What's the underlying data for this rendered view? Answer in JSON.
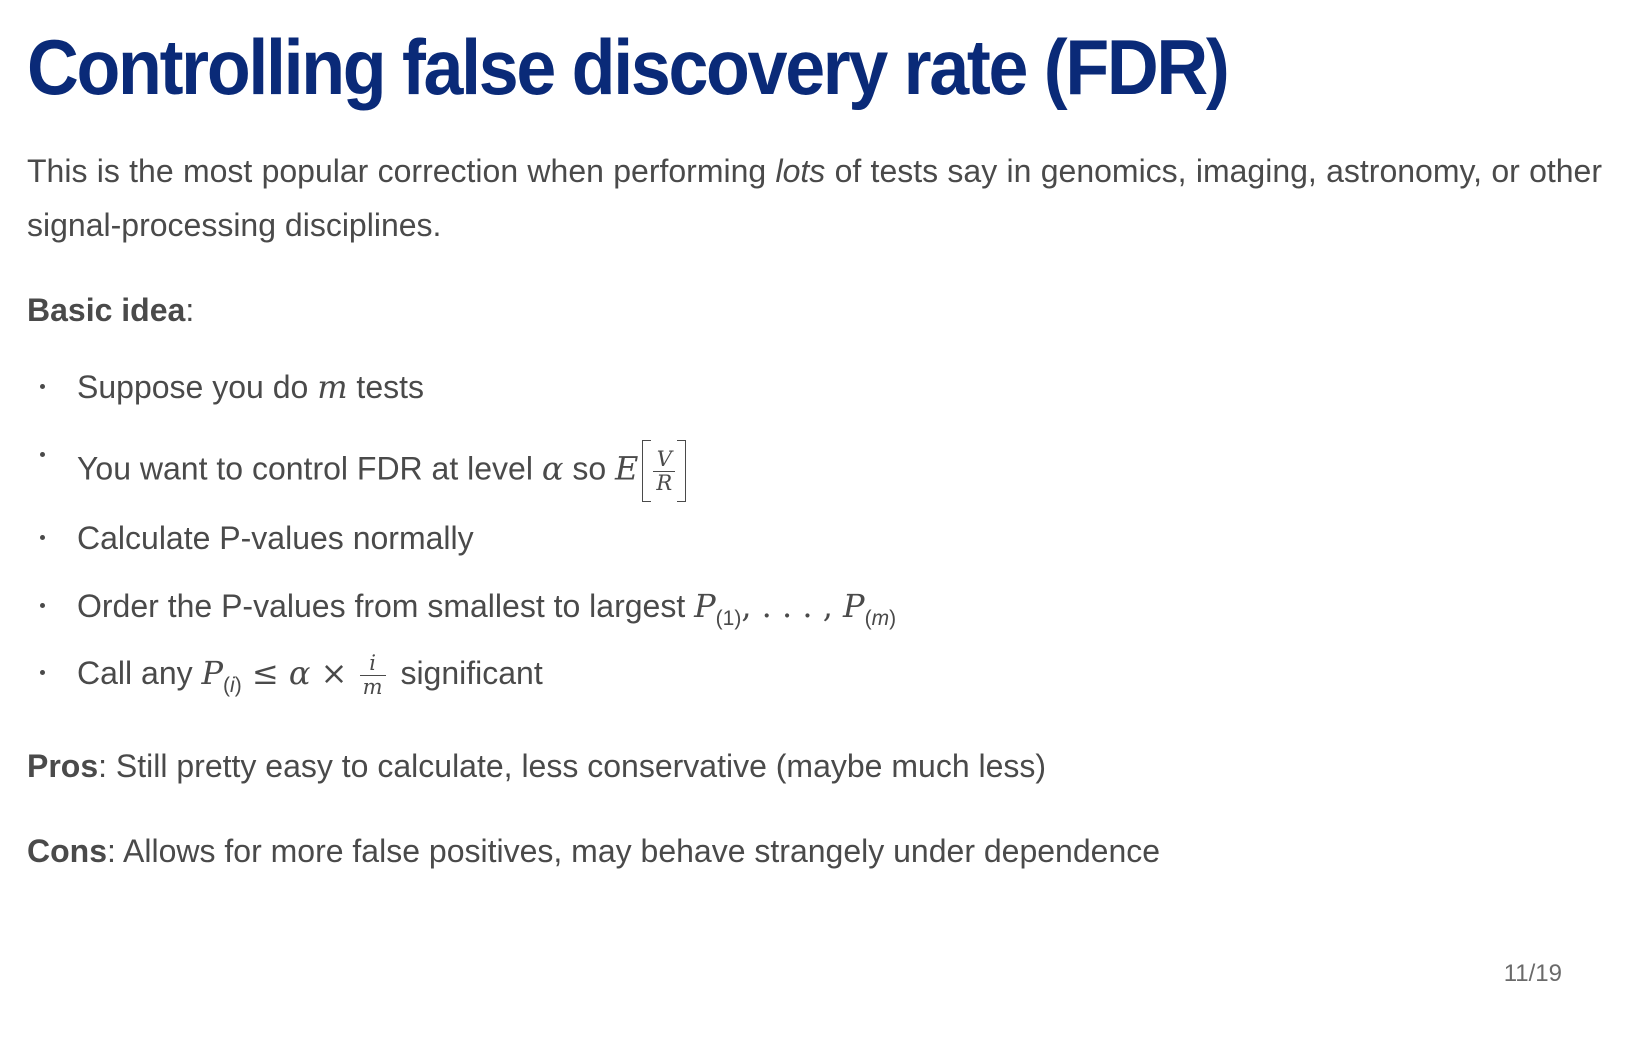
{
  "slide": {
    "title": "Controlling false discovery rate (FDR)",
    "intro": {
      "before": "This is the most popular correction when performing ",
      "emph": "lots",
      "after": " of tests say in genomics, imaging, astronomy, or other signal-processing disciplines."
    },
    "basic_idea": {
      "label": "Basic idea",
      "colon": ":"
    },
    "bullets": [
      {
        "pre": "Suppose you do ",
        "var": "m",
        "post": " tests"
      },
      {
        "pre": "You want to control FDR at level ",
        "alpha": "α",
        "mid": " so ",
        "E": "E",
        "num": "V",
        "den": "R"
      },
      {
        "text": "Calculate P-values normally"
      },
      {
        "pre": "Order the P-values from smallest to largest ",
        "P": "P",
        "sub1": "(1)",
        "dots": ", . . . , ",
        "subm_open": "(",
        "subm_var": "m",
        "subm_close": ")"
      },
      {
        "pre": "Call any ",
        "P": "P",
        "sub_open": "(",
        "sub_var": "i",
        "sub_close": ")",
        "le": " ≤ ",
        "alpha": "α",
        "times": " × ",
        "num": "i",
        "den": "m",
        "post": " significant"
      }
    ],
    "pros": {
      "label": "Pros",
      "text": ": Still pretty easy to calculate, less conservative (maybe much less)"
    },
    "cons": {
      "label": "Cons",
      "text": ": Allows for more false positives, may behave strangely under dependence"
    },
    "page_number": "11/19"
  }
}
